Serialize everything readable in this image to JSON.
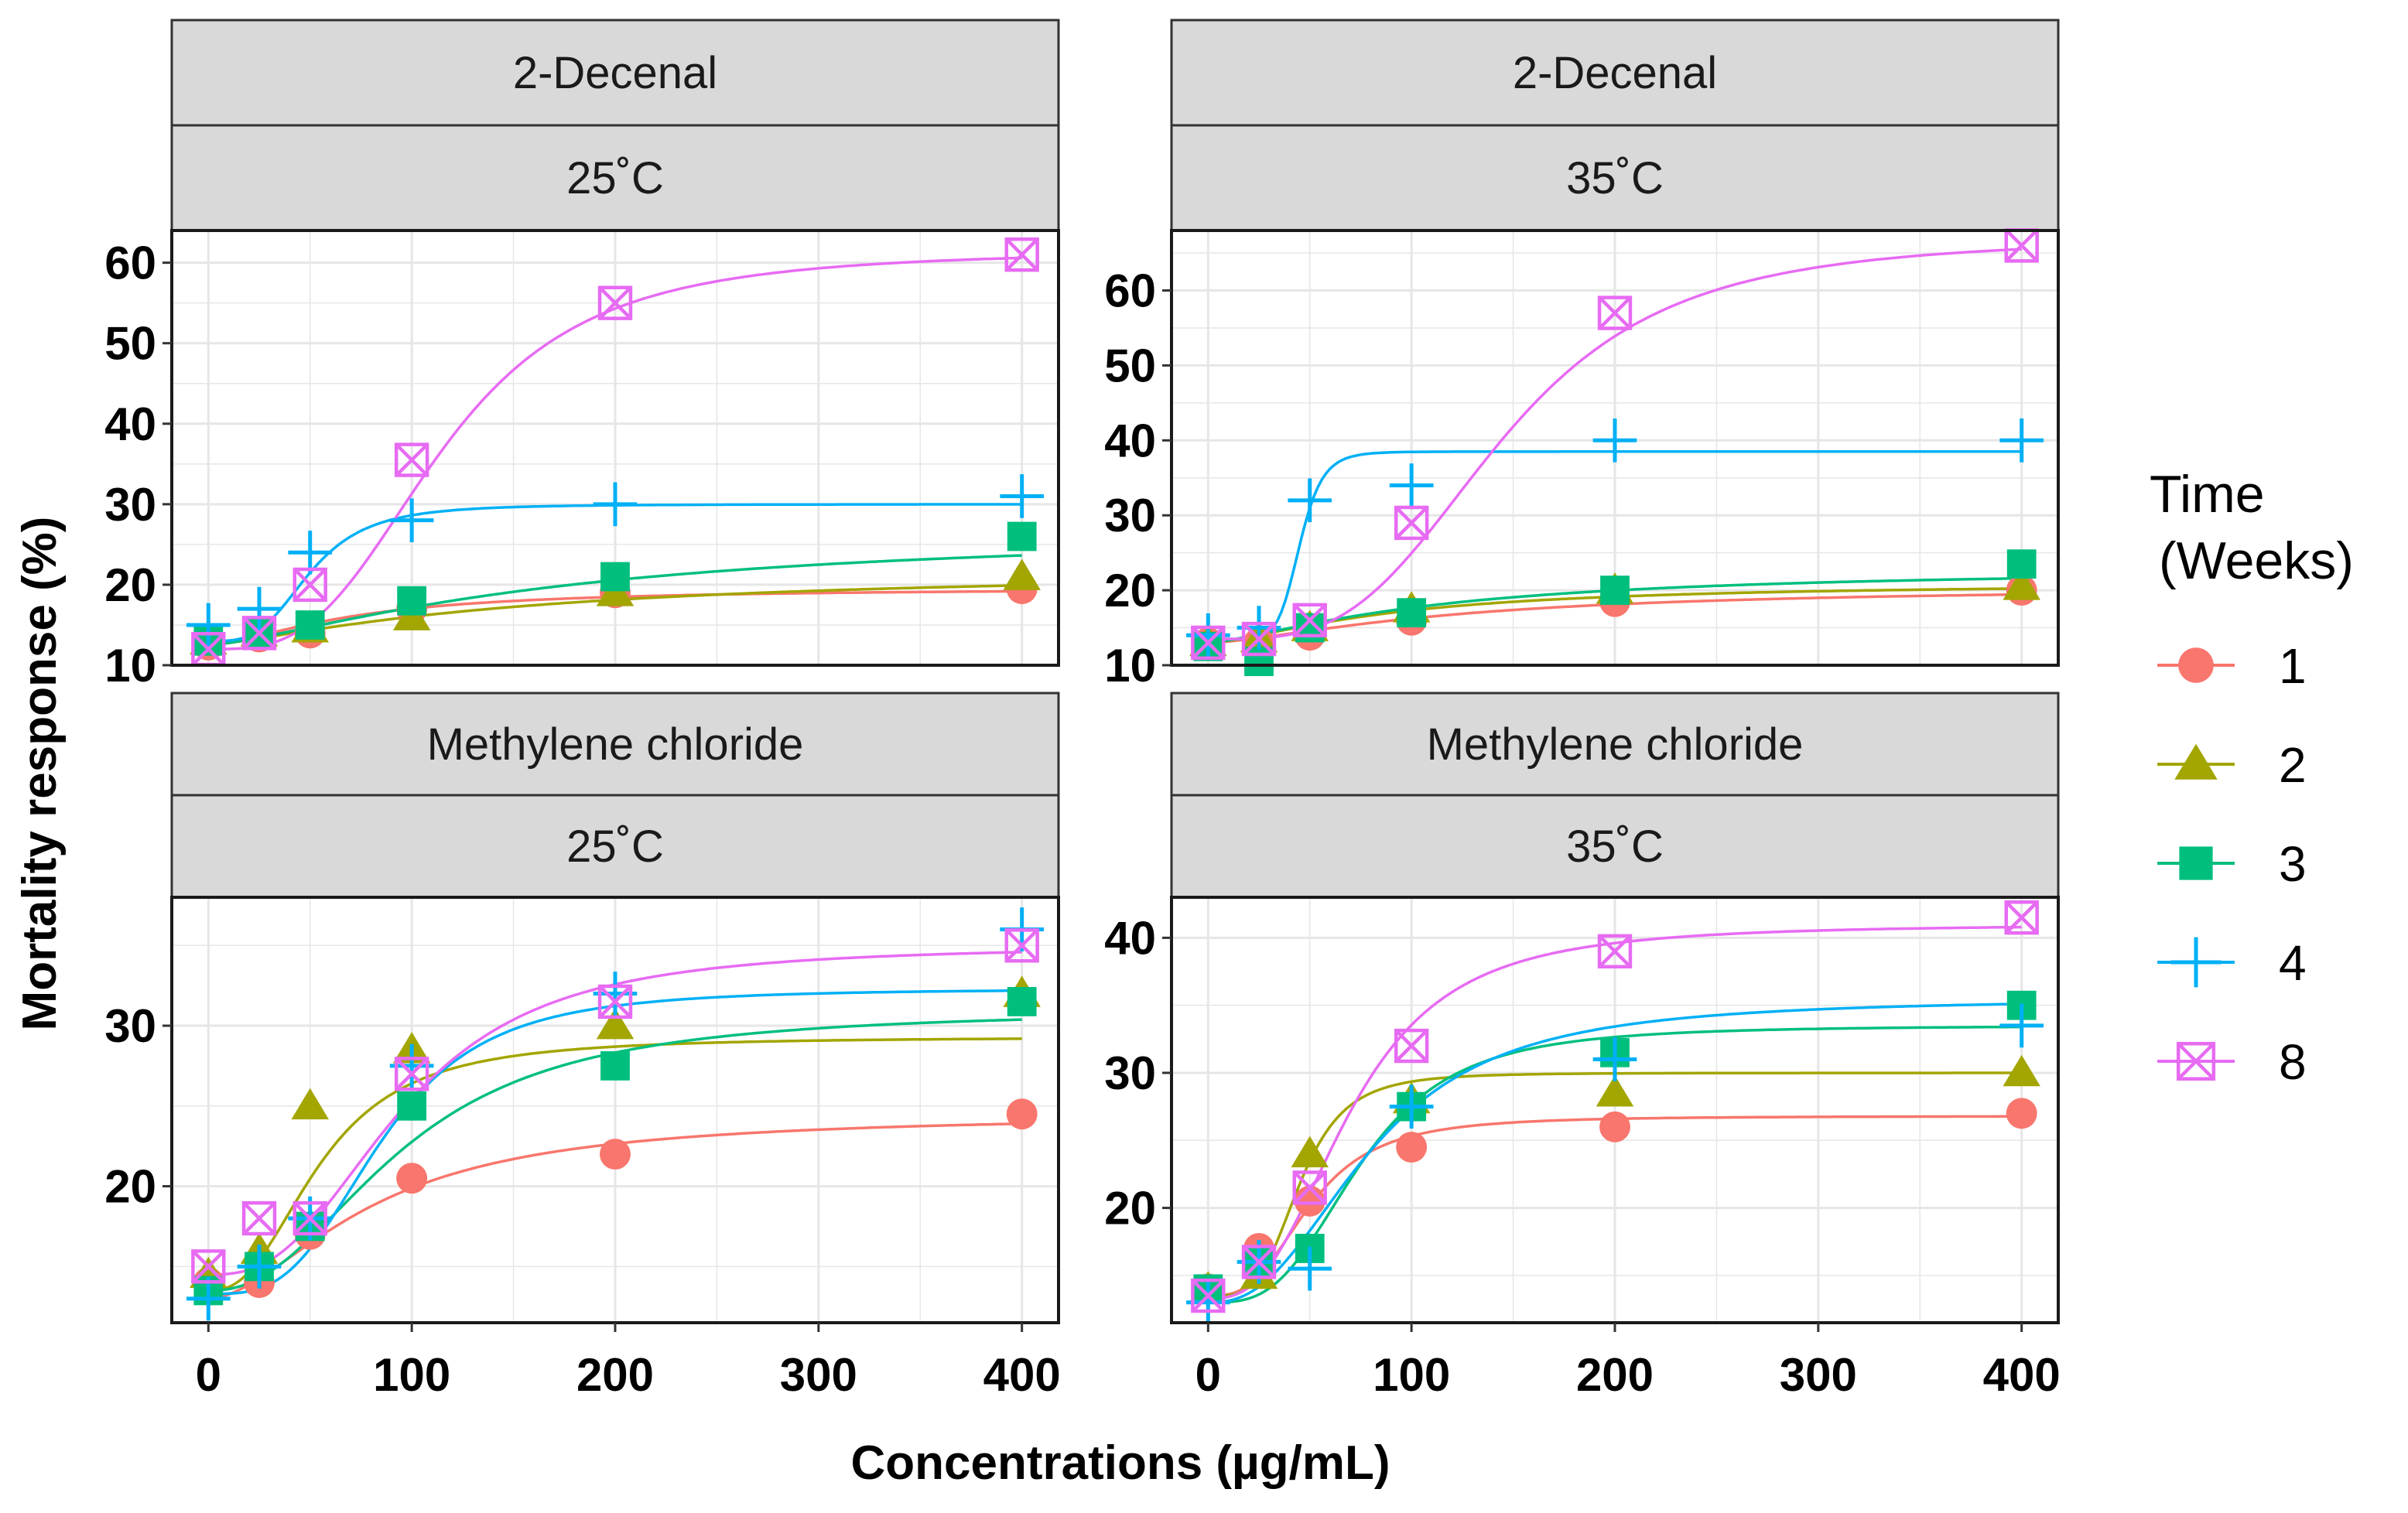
{
  "chart_data": {
    "type": "line",
    "title": "",
    "xlabel": "Concentrations (µg/mL)",
    "ylabel": "Mortality response  (%)",
    "x_ticks": [
      0,
      100,
      200,
      300,
      400
    ],
    "legend": {
      "title_line1": "Time",
      "title_line2": "(Weeks)",
      "placement": "right",
      "entries": [
        {
          "label": "1",
          "color": "#F8766D",
          "shape": "circle"
        },
        {
          "label": "2",
          "color": "#A3A500",
          "shape": "triangle"
        },
        {
          "label": "3",
          "color": "#00BF7D",
          "shape": "square"
        },
        {
          "label": "4",
          "color": "#00B0F6",
          "shape": "plus"
        },
        {
          "label": "8",
          "color": "#E76BF3",
          "shape": "boxcross"
        }
      ]
    },
    "x": [
      0,
      25,
      50,
      100,
      200,
      400
    ],
    "panels": [
      {
        "compound": "2-Decenal",
        "temperature": "25˚C",
        "ylim": [
          10,
          64
        ],
        "y_ticks": [
          10,
          20,
          30,
          40,
          50,
          60
        ],
        "series": [
          {
            "name": "1",
            "values": [
              12.5,
              13.5,
              14,
              17,
              19,
              19.5
            ],
            "fit": {
              "type": "logistic",
              "lower": 12.5,
              "upper": 19.6,
              "ec50": 70,
              "hill": 1.6
            }
          },
          {
            "name": "2",
            "values": [
              13,
              14,
              14.5,
              16,
              19,
              21
            ],
            "fit": {
              "type": "logistic",
              "lower": 12.5,
              "upper": 22,
              "ec50": 150,
              "hill": 1.3
            }
          },
          {
            "name": "3",
            "values": [
              13,
              14,
              15,
              18,
              21,
              26
            ],
            "fit": {
              "type": "logistic",
              "lower": 12.5,
              "upper": 27,
              "ec50": 170,
              "hill": 1.4
            }
          },
          {
            "name": "4",
            "values": [
              15,
              17,
              24,
              28,
              30,
              31
            ],
            "fit": {
              "type": "logistic",
              "lower": 13,
              "upper": 30,
              "ec50": 50,
              "hill": 3.5
            }
          },
          {
            "name": "8",
            "values": [
              12,
              14,
              20,
              35.5,
              55,
              61
            ],
            "fit": {
              "type": "logistic",
              "lower": 12,
              "upper": 61.5,
              "ec50": 115,
              "hill": 3.2
            }
          }
        ]
      },
      {
        "compound": "2-Decenal",
        "temperature": "35˚C",
        "ylim": [
          10,
          68
        ],
        "y_ticks": [
          10,
          20,
          30,
          40,
          50,
          60
        ],
        "series": [
          {
            "name": "1",
            "values": [
              13,
              13,
              14,
              16,
              18.5,
              20
            ],
            "fit": {
              "type": "logistic",
              "lower": 13,
              "upper": 20.5,
              "ec50": 120,
              "hill": 1.5
            }
          },
          {
            "name": "2",
            "values": [
              13,
              13.5,
              15,
              17.5,
              20,
              20.5
            ],
            "fit": {
              "type": "logistic",
              "lower": 13,
              "upper": 21,
              "ec50": 90,
              "hill": 1.5
            }
          },
          {
            "name": "3",
            "values": [
              12.5,
              10.5,
              15,
              17,
              20,
              23.5
            ],
            "fit": {
              "type": "logistic",
              "lower": 13,
              "upper": 23,
              "ec50": 110,
              "hill": 1.4
            }
          },
          {
            "name": "4",
            "values": [
              14,
              15,
              32,
              34,
              40,
              40
            ],
            "fit": {
              "type": "logistic",
              "lower": 13.5,
              "upper": 38.5,
              "ec50": 45,
              "hill": 8
            }
          },
          {
            "name": "8",
            "values": [
              13,
              13.5,
              16,
              29,
              57,
              66
            ],
            "fit": {
              "type": "logistic",
              "lower": 13.5,
              "upper": 67,
              "ec50": 145,
              "hill": 3.5
            }
          }
        ]
      },
      {
        "compound": "Methylene chloride",
        "temperature": "25˚C",
        "ylim": [
          11.5,
          38
        ],
        "y_ticks": [
          20,
          30
        ],
        "series": [
          {
            "name": "1",
            "values": [
              14,
              14,
              17,
              20.5,
              22,
              24.5
            ],
            "fit": {
              "type": "logistic",
              "lower": 13,
              "upper": 24.5,
              "ec50": 80,
              "hill": 1.8
            }
          },
          {
            "name": "2",
            "values": [
              14.5,
              16,
              25,
              28.5,
              30,
              32
            ],
            "fit": {
              "type": "logistic",
              "lower": 13.5,
              "upper": 29.3,
              "ec50": 55,
              "hill": 2.5
            }
          },
          {
            "name": "3",
            "values": [
              13.5,
              15,
              17.5,
              25,
              27.5,
              31.5
            ],
            "fit": {
              "type": "logistic",
              "lower": 13.5,
              "upper": 31,
              "ec50": 95,
              "hill": 2.3
            }
          },
          {
            "name": "4",
            "values": [
              13,
              15,
              18,
              27.5,
              32,
              36
            ],
            "fit": {
              "type": "logistic",
              "lower": 13.3,
              "upper": 32.3,
              "ec50": 85,
              "hill": 3.3
            }
          },
          {
            "name": "8",
            "values": [
              15,
              18,
              18,
              27,
              31.5,
              35
            ],
            "fit": {
              "type": "logistic",
              "lower": 14.5,
              "upper": 35,
              "ec50": 95,
              "hill": 2.7
            }
          }
        ]
      },
      {
        "compound": "Methylene chloride",
        "temperature": "35˚C",
        "ylim": [
          11.5,
          43
        ],
        "y_ticks": [
          20,
          30,
          40
        ],
        "series": [
          {
            "name": "1",
            "values": [
              14,
              17,
              20.5,
              24.5,
              26,
              27
            ],
            "fit": {
              "type": "logistic",
              "lower": 13.5,
              "upper": 26.8,
              "ec50": 50,
              "hill": 3
            }
          },
          {
            "name": "2",
            "values": [
              14,
              15,
              24,
              28,
              28.5,
              30
            ],
            "fit": {
              "type": "logistic",
              "lower": 13.5,
              "upper": 30,
              "ec50": 45,
              "hill": 4
            }
          },
          {
            "name": "3",
            "values": [
              14,
              16,
              17,
              27.5,
              31.5,
              35
            ],
            "fit": {
              "type": "logistic",
              "lower": 13,
              "upper": 33.5,
              "ec50": 75,
              "hill": 3.2
            }
          },
          {
            "name": "4",
            "values": [
              13,
              16,
              15.5,
              27.5,
              31,
              33.5
            ],
            "fit": {
              "type": "logistic",
              "lower": 13,
              "upper": 35.5,
              "ec50": 80,
              "hill": 2.5
            }
          },
          {
            "name": "8",
            "values": [
              13.5,
              16,
              21.5,
              32,
              39,
              41.5
            ],
            "fit": {
              "type": "logistic",
              "lower": 13.3,
              "upper": 41,
              "ec50": 70,
              "hill": 2.8
            }
          }
        ]
      }
    ]
  }
}
